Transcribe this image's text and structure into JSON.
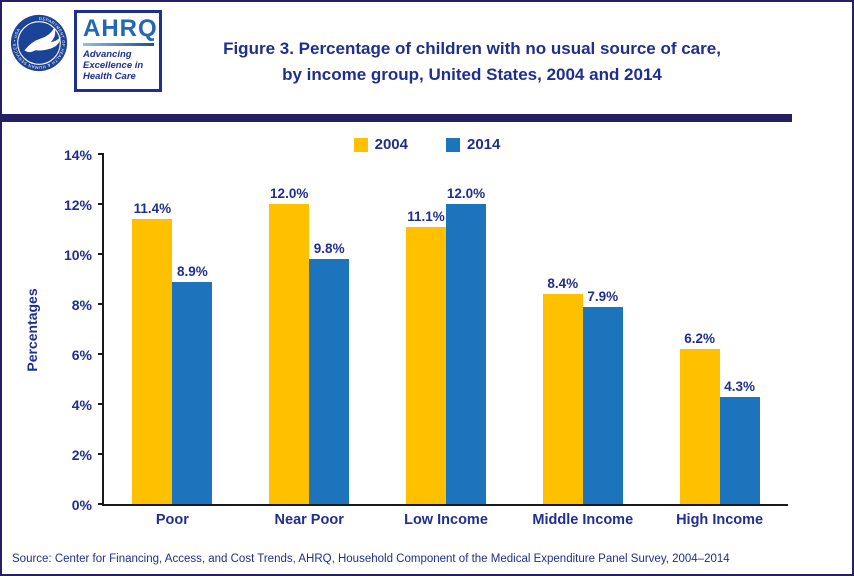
{
  "page": {
    "title_line1": "Figure 3. Percentage of children with no usual source of care,",
    "title_line2": "by income group, United States, 2004 and 2014"
  },
  "logos": {
    "hhs_ring_text": "DEPARTMENT OF HEALTH & HUMAN SERVICES • USA",
    "ahrq": {
      "acronym": "AHRQ",
      "tagline1": "Advancing",
      "tagline2": "Excellence in",
      "tagline3": "Health Care"
    }
  },
  "chart_data": {
    "type": "bar",
    "title": "Figure 3. Percentage of children with no usual source of care, by income group, United States, 2004 and 2014",
    "categories": [
      "Poor",
      "Near Poor",
      "Low Income",
      "Middle Income",
      "High Income"
    ],
    "series": [
      {
        "name": "2004",
        "color": "#FFC000",
        "values": [
          11.4,
          12.0,
          11.1,
          8.4,
          6.2
        ]
      },
      {
        "name": "2014",
        "color": "#1C75BC",
        "values": [
          8.9,
          9.8,
          12.0,
          7.9,
          4.3
        ]
      }
    ],
    "xlabel": "",
    "ylabel": "Percentages",
    "ylim": [
      0,
      14
    ],
    "ytick_step": 2,
    "ytick_suffix": "%",
    "grid": false,
    "legend_position": "top",
    "data_labels": true,
    "data_label_format": "one_decimal_percent"
  },
  "footer": {
    "source": "Source: Center for Financing, Access, and Cost Trends, AHRQ, Household Component of the Medical Expenditure Panel Survey, 2004–2014"
  },
  "colors": {
    "navy_text": "#1F2F8F",
    "divider": "#261F63",
    "border": "#261F63",
    "axis": "#1a1a1a",
    "series_2004": "#FFC000",
    "series_2014": "#1C75BC"
  }
}
